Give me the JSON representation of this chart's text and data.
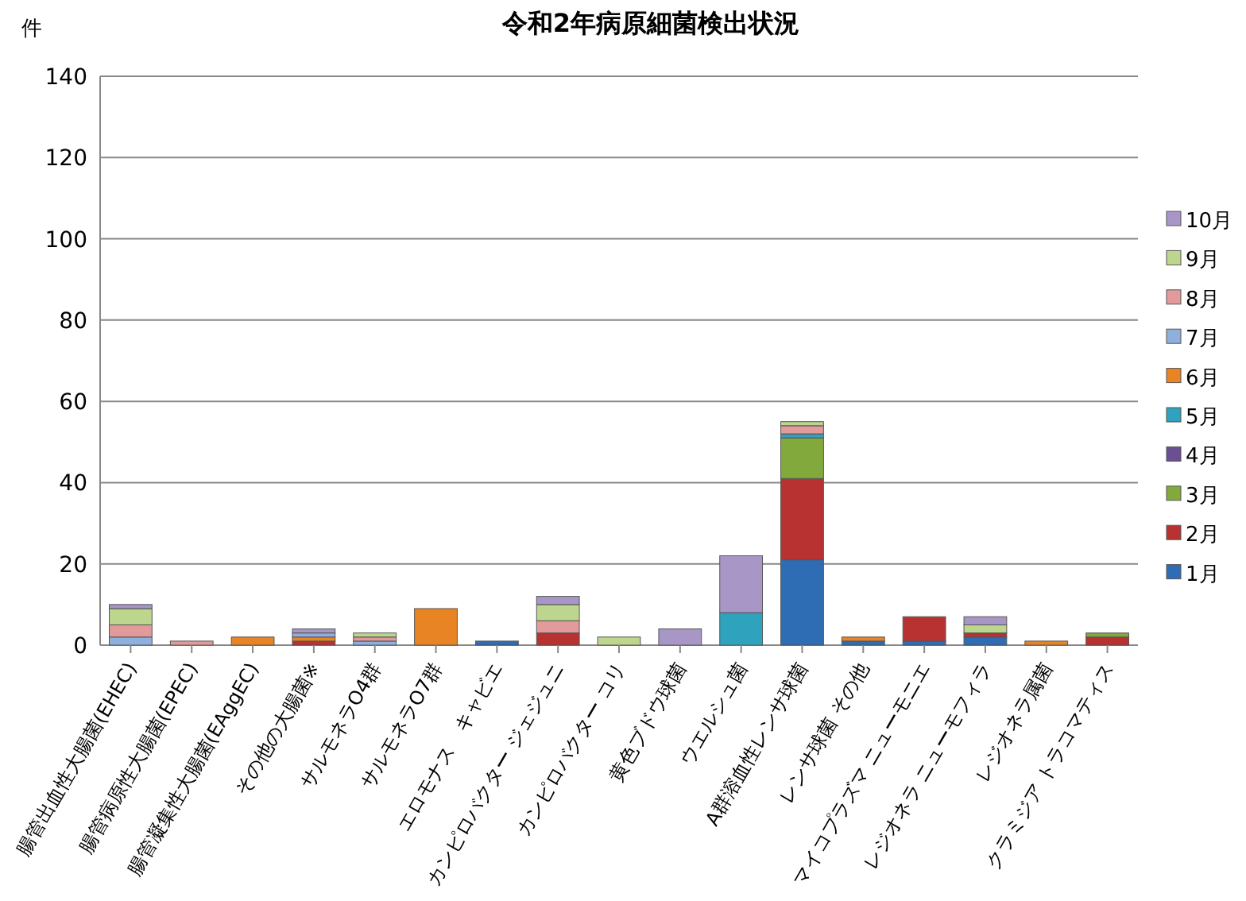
{
  "chart_data": {
    "type": "bar",
    "stacked": true,
    "title": "令和2年病原細菌検出状況",
    "ylabel": "件",
    "categories": [
      "腸管出血性大腸菌(EHEC)",
      "腸管病原性大腸菌(EPEC)",
      "腸管凝集性大腸菌(EAggEC)",
      "その他の大腸菌※",
      "サルモネラO4群",
      "サルモネラO7群",
      "エロモナス　キャビエ",
      "カンピロバクター ジェジュニ",
      "カンピロバクター コリ",
      "黄色ブドウ球菌",
      "ウエルシュ菌",
      "A群溶血性レンサ球菌",
      "レンサ球菌 その他",
      "マイコプラズマ ニューモニエ",
      "レジオネラ ニューモフィラ",
      "レジオネラ属菌",
      "クラミジア トラコマティス"
    ],
    "series": [
      {
        "name": "1月",
        "color": "#2e6db4",
        "values": [
          0,
          0,
          0,
          0,
          0,
          0,
          1,
          0,
          0,
          0,
          0,
          21,
          1,
          1,
          2,
          0,
          0
        ]
      },
      {
        "name": "2月",
        "color": "#b83232",
        "values": [
          0,
          0,
          0,
          1,
          0,
          0,
          0,
          3,
          0,
          0,
          0,
          20,
          0,
          6,
          1,
          0,
          2
        ]
      },
      {
        "name": "3月",
        "color": "#82a93c",
        "values": [
          0,
          0,
          0,
          0,
          0,
          0,
          0,
          0,
          0,
          0,
          0,
          10,
          0,
          0,
          0,
          0,
          1
        ]
      },
      {
        "name": "4月",
        "color": "#6a4f93",
        "values": [
          0,
          0,
          0,
          0,
          0,
          0,
          0,
          0,
          0,
          0,
          0,
          0,
          0,
          0,
          0,
          0,
          0
        ]
      },
      {
        "name": "5月",
        "color": "#2fa3bd",
        "values": [
          0,
          0,
          0,
          0,
          0,
          0,
          0,
          0,
          0,
          0,
          8,
          1,
          0,
          0,
          0,
          0,
          0
        ]
      },
      {
        "name": "6月",
        "color": "#e98424",
        "values": [
          0,
          0,
          2,
          1,
          0,
          9,
          0,
          0,
          0,
          0,
          0,
          0,
          1,
          0,
          0,
          1,
          0
        ]
      },
      {
        "name": "7月",
        "color": "#8fb0dc",
        "values": [
          2,
          0,
          0,
          1,
          1,
          0,
          0,
          0,
          0,
          0,
          0,
          0,
          0,
          0,
          0,
          0,
          0
        ]
      },
      {
        "name": "8月",
        "color": "#e39a9a",
        "values": [
          3,
          1,
          0,
          0,
          1,
          0,
          0,
          3,
          0,
          0,
          0,
          2,
          0,
          0,
          0,
          0,
          0
        ]
      },
      {
        "name": "9月",
        "color": "#bcd68e",
        "values": [
          4,
          0,
          0,
          0,
          1,
          0,
          0,
          4,
          2,
          0,
          0,
          1,
          0,
          0,
          2,
          0,
          0
        ]
      },
      {
        "name": "10月",
        "color": "#a897c6",
        "values": [
          1,
          0,
          0,
          1,
          0,
          0,
          0,
          2,
          0,
          4,
          14,
          0,
          0,
          0,
          2,
          0,
          0
        ]
      }
    ],
    "ylim": [
      0,
      140
    ],
    "yticks": [
      0,
      20,
      40,
      60,
      80,
      100,
      120,
      140
    ],
    "grid": "y",
    "legend": "right"
  }
}
